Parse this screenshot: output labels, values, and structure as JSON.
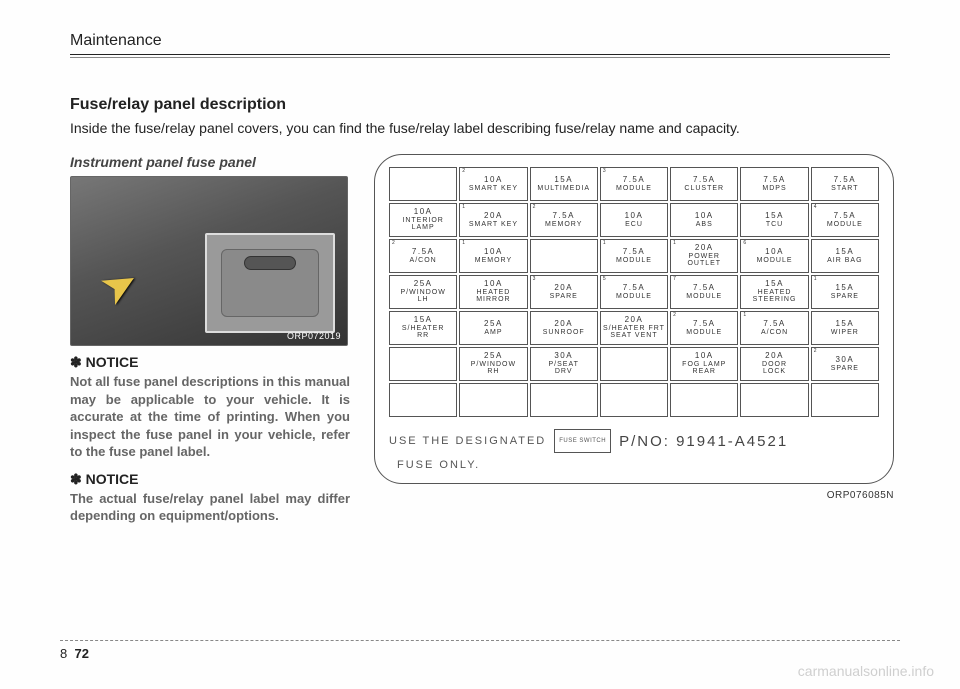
{
  "header": {
    "section": "Maintenance"
  },
  "heading": "Fuse/relay panel description",
  "intro": "Inside the fuse/relay panel covers, you can find the fuse/relay label describing fuse/relay name and capacity.",
  "sub_heading": "Instrument panel fuse panel",
  "photo_code": "ORP072019",
  "notice1_title": "✽ NOTICE",
  "notice1_body": "Not all fuse panel descriptions in this manual may be applicable to your vehicle. It is accurate at the time of printing. When you inspect the fuse panel in your vehicle, refer to the fuse panel label.",
  "notice2_title": "✽ NOTICE",
  "notice2_body": "The actual fuse/relay panel label may differ depending on equipment/options.",
  "diagram": {
    "rows": [
      [
        null,
        {
          "corner": "2",
          "amp": "10A",
          "label": "SMART KEY"
        },
        {
          "amp": "15A",
          "label": "MULTIMEDIA"
        },
        {
          "corner": "3",
          "amp": "7.5A",
          "label": "MODULE"
        },
        {
          "amp": "7.5A",
          "label": "CLUSTER"
        },
        {
          "amp": "7.5A",
          "label": "MDPS"
        },
        {
          "amp": "7.5A",
          "label": "START"
        }
      ],
      [
        {
          "amp": "10A",
          "label": "INTERIOR LAMP"
        },
        {
          "corner": "1",
          "amp": "20A",
          "label": "SMART KEY"
        },
        {
          "corner": "2",
          "amp": "7.5A",
          "label": "MEMORY"
        },
        {
          "amp": "10A",
          "label": "ECU"
        },
        {
          "amp": "10A",
          "label": "ABS"
        },
        {
          "amp": "15A",
          "label": "TCU"
        },
        {
          "corner": "4",
          "amp": "7.5A",
          "label": "MODULE"
        }
      ],
      [
        {
          "corner": "2",
          "amp": "7.5A",
          "label": "A/CON"
        },
        {
          "corner": "1",
          "amp": "10A",
          "label": "MEMORY"
        },
        null,
        {
          "corner": "1",
          "amp": "7.5A",
          "label": "MODULE"
        },
        {
          "corner": "1",
          "amp": "20A",
          "label": "POWER\nOUTLET"
        },
        {
          "corner": "6",
          "amp": "10A",
          "label": "MODULE"
        },
        {
          "amp": "15A",
          "label": "AIR BAG"
        }
      ],
      [
        {
          "amp": "25A",
          "label": "P/WINDOW\nLH"
        },
        {
          "amp": "10A",
          "label": "HEATED\nMIRROR"
        },
        {
          "corner": "3",
          "amp": "20A",
          "label": "SPARE"
        },
        {
          "corner": "5",
          "amp": "7.5A",
          "label": "MODULE"
        },
        {
          "corner": "7",
          "amp": "7.5A",
          "label": "MODULE"
        },
        {
          "amp": "15A",
          "label": "HEATED\nSTEERING"
        },
        {
          "corner": "1",
          "amp": "15A",
          "label": "SPARE"
        }
      ],
      [
        {
          "amp": "15A",
          "label": "S/HEATER\nRR"
        },
        {
          "amp": "25A",
          "label": "AMP"
        },
        {
          "amp": "20A",
          "label": "SUNROOF"
        },
        {
          "amp": "20A",
          "label": "S/HEATER FRT\nSEAT VENT"
        },
        {
          "corner": "2",
          "amp": "7.5A",
          "label": "MODULE"
        },
        {
          "corner": "1",
          "amp": "7.5A",
          "label": "A/CON"
        },
        {
          "amp": "15A",
          "label": "WIPER"
        }
      ],
      [
        null,
        {
          "amp": "25A",
          "label": "P/WINDOW\nRH"
        },
        {
          "amp": "30A",
          "label": "P/SEAT\nDRV"
        },
        null,
        {
          "amp": "10A",
          "label": "FOG LAMP\nREAR"
        },
        {
          "amp": "20A",
          "label": "DOOR\nLOCK"
        },
        {
          "corner": "2",
          "amp": "30A",
          "label": "SPARE"
        }
      ],
      [
        null,
        null,
        null,
        null,
        null,
        null,
        null
      ]
    ],
    "use_text": "USE THE DESIGNATED",
    "fuse_only": "FUSE ONLY.",
    "fuse_switch": "FUSE SWITCH",
    "pno": "P/NO: 91941-A4521",
    "code": "ORP076085N"
  },
  "footer": {
    "chapter": "8",
    "page": "72"
  },
  "watermark": "carmanualsonline.info"
}
